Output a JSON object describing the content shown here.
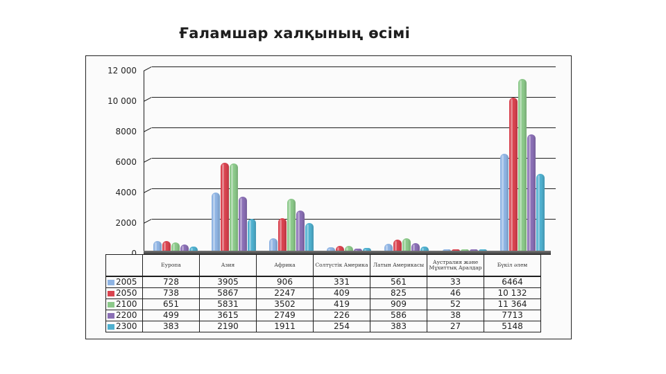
{
  "page": {
    "title": "Ғаламшар халқының өсімі"
  },
  "chart_data": {
    "type": "bar",
    "title": "Ғаламшар халқының өсімі",
    "xlabel": "",
    "ylabel": "",
    "ylim": [
      0,
      12000
    ],
    "yticks": [
      "0",
      "2000",
      "4000",
      "6000",
      "8000",
      "10 000",
      "12 000"
    ],
    "grid": true,
    "legend_position": "table-left",
    "categories": [
      "Еуропа",
      "Азия",
      "Африка",
      "Солтүстік Америка",
      "Латын Америкасы",
      "Аустралия және Мұхиттық Аралдар",
      "Бүкіл әлем"
    ],
    "series": [
      {
        "name": "2005",
        "color": "#8fb4e3",
        "values": [
          728,
          3905,
          906,
          331,
          561,
          33,
          6464
        ]
      },
      {
        "name": "2050",
        "color": "#d9434f",
        "values": [
          738,
          5867,
          2247,
          409,
          825,
          46,
          10132
        ]
      },
      {
        "name": "2100",
        "color": "#8cc98a",
        "values": [
          651,
          5831,
          3502,
          419,
          909,
          52,
          11364
        ]
      },
      {
        "name": "2200",
        "color": "#8a6fb5",
        "values": [
          499,
          3615,
          2749,
          226,
          586,
          38,
          7713
        ]
      },
      {
        "name": "2300",
        "color": "#4fb0cf",
        "values": [
          383,
          2190,
          1911,
          254,
          383,
          27,
          5148
        ]
      }
    ]
  },
  "table": {
    "headers": [
      "Еуропа",
      "Азия",
      "Африка",
      "Солтүстік Америка",
      "Латын Америкасы",
      "Аустралия және Мұхиттық Аралдар",
      "Бүкіл әлем"
    ],
    "rows": [
      {
        "label": "2005",
        "cells": [
          "728",
          "3905",
          "906",
          "331",
          "561",
          "33",
          "6464"
        ]
      },
      {
        "label": "2050",
        "cells": [
          "738",
          "5867",
          "2247",
          "409",
          "825",
          "46",
          "10 132"
        ]
      },
      {
        "label": "2100",
        "cells": [
          "651",
          "5831",
          "3502",
          "419",
          "909",
          "52",
          "11 364"
        ]
      },
      {
        "label": "2200",
        "cells": [
          "499",
          "3615",
          "2749",
          "226",
          "586",
          "38",
          "7713"
        ]
      },
      {
        "label": "2300",
        "cells": [
          "383",
          "2190",
          "1911",
          "254",
          "383",
          "27",
          "5148"
        ]
      }
    ]
  }
}
